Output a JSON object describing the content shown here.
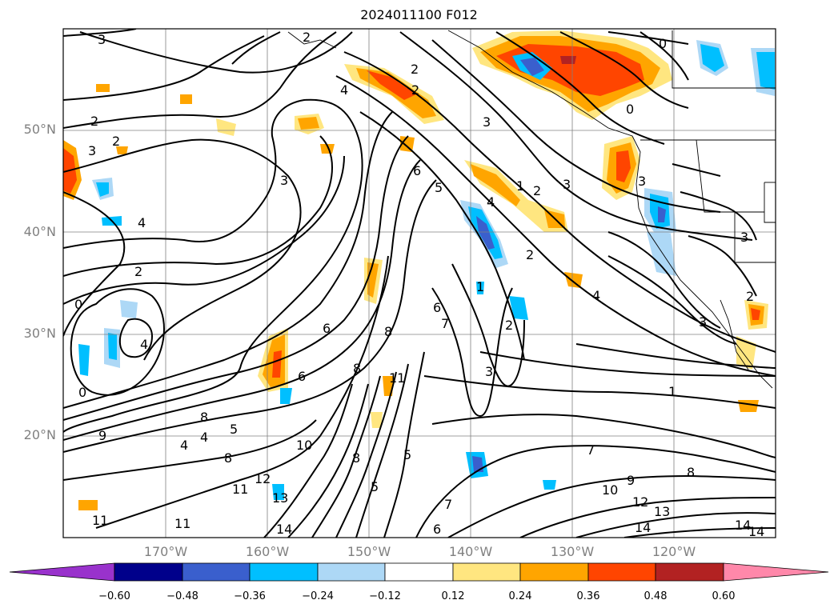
{
  "title": "2024011100 F012",
  "lat_labels": [
    "50°N",
    "40°N",
    "30°N",
    "20°N"
  ],
  "lon_labels": [
    "170°W",
    "160°W",
    "150°W",
    "140°W",
    "130°W",
    "120°W"
  ],
  "colorbar": {
    "ticks": [
      "−0.60",
      "−0.48",
      "−0.36",
      "−0.24",
      "−0.12",
      "0.12",
      "0.24",
      "0.36",
      "0.48",
      "0.60"
    ],
    "colors": [
      "#9932CC",
      "#00008B",
      "#3A5FCD",
      "#00BFFF",
      "#ADD8F6",
      "#FFFFFF",
      "#FFE680",
      "#FFA500",
      "#FF4500",
      "#B22222",
      "#FF88AA"
    ]
  },
  "contour_labels": [
    "3",
    "2",
    "2",
    "2",
    "0",
    "0",
    "2",
    "2",
    "3",
    "4",
    "4",
    "3",
    "3",
    "6",
    "5",
    "4",
    "2",
    "2",
    "3",
    "3",
    "1",
    "0",
    "3",
    "3",
    "2",
    "0",
    "4",
    "6",
    "7",
    "8",
    "2",
    "1",
    "2",
    "6",
    "8",
    "3",
    "8",
    "11",
    "1",
    "4",
    "6",
    "5",
    "4",
    "4",
    "8",
    "9",
    "10",
    "7",
    "8",
    "8",
    "9",
    "10",
    "12",
    "13",
    "14",
    "14",
    "11",
    "12",
    "13",
    "11",
    "14",
    "6",
    "7",
    "5",
    "5"
  ]
}
